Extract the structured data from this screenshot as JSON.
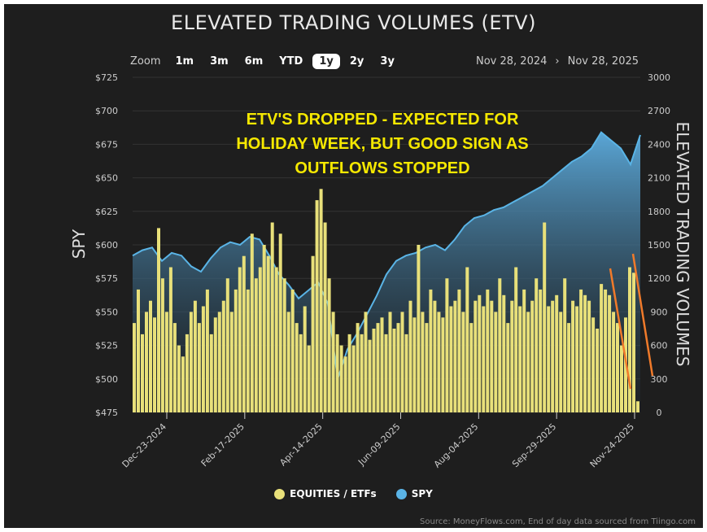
{
  "chart_data": {
    "type": "bar+area",
    "title": "ELEVATED TRADING VOLUMES (ETV)",
    "annotation": [
      "ETV'S DROPPED - EXPECTED FOR",
      "HOLIDAY WEEK, BUT GOOD SIGN AS",
      "OUTFLOWS STOPPED"
    ],
    "y_left": {
      "label": "SPY",
      "ylim": [
        475,
        725
      ],
      "ticks": [
        "$475",
        "$500",
        "$525",
        "$550",
        "$575",
        "$600",
        "$625",
        "$650",
        "$675",
        "$700",
        "$725"
      ]
    },
    "y_right": {
      "label": "ELEVATED TRADING VOLUMES",
      "ylim": [
        0,
        3000
      ],
      "ticks": [
        "0",
        "300",
        "600",
        "900",
        "1200",
        "1500",
        "1800",
        "2100",
        "2400",
        "2700",
        "3000"
      ]
    },
    "x": {
      "range": [
        "Nov 28, 2024",
        "Nov 28, 2025"
      ],
      "tick_labels": [
        "Dec-23-2024",
        "Feb-17-2025",
        "Apr-14-2025",
        "Jun-09-2025",
        "Aug-04-2025",
        "Sep-29-2025",
        "Nov-24-2025"
      ]
    },
    "grid": true,
    "legend_placement": "bottom",
    "series": [
      {
        "name": "EQUITIES / ETFs",
        "type": "bar",
        "axis": "right",
        "color": "#e8e07a",
        "values": [
          800,
          1100,
          700,
          900,
          1000,
          850,
          1650,
          1200,
          900,
          1300,
          800,
          600,
          500,
          700,
          900,
          1000,
          800,
          950,
          1100,
          700,
          850,
          900,
          1000,
          1200,
          900,
          1100,
          1300,
          1400,
          1100,
          1600,
          1200,
          1300,
          1500,
          1400,
          1700,
          1300,
          1600,
          1200,
          900,
          1100,
          800,
          700,
          950,
          600,
          1400,
          1900,
          2000,
          1700,
          1200,
          900,
          700,
          600,
          500,
          700,
          600,
          800,
          700,
          900,
          650,
          750,
          800,
          850,
          700,
          900,
          750,
          800,
          900,
          700,
          1000,
          850,
          1500,
          900,
          800,
          1100,
          1000,
          900,
          850,
          1200,
          950,
          1000,
          1100,
          900,
          1300,
          800,
          1000,
          1050,
          950,
          1100,
          1000,
          900,
          1200,
          1050,
          800,
          1000,
          1300,
          950,
          1100,
          900,
          1000,
          1200,
          1100,
          1700,
          950,
          1000,
          1050,
          900,
          1200,
          800,
          1000,
          950,
          1100,
          1050,
          1000,
          850,
          750,
          1150,
          1100,
          1050,
          900,
          800,
          600,
          850,
          1300,
          1250,
          100
        ]
      },
      {
        "name": "SPY",
        "type": "area",
        "axis": "left",
        "color": "#5ab4e6",
        "values": [
          592,
          596,
          598,
          588,
          594,
          592,
          584,
          580,
          590,
          598,
          602,
          600,
          606,
          604,
          592,
          578,
          570,
          560,
          566,
          572,
          556,
          500,
          522,
          534,
          548,
          562,
          578,
          588,
          592,
          594,
          598,
          600,
          596,
          604,
          614,
          620,
          622,
          626,
          628,
          632,
          636,
          640,
          644,
          650,
          656,
          662,
          666,
          672,
          684,
          678,
          672,
          660,
          682
        ]
      }
    ],
    "source": "Source: MoneyFlows.com, End of day data sourced from Tiingo.com"
  },
  "toolbar": {
    "zoom_label": "Zoom",
    "buttons": [
      "1m",
      "3m",
      "6m",
      "YTD",
      "1y",
      "2y",
      "3y"
    ],
    "active": "1y",
    "range_start": "Nov 28, 2024",
    "range_sep": "›",
    "range_end": "Nov 28, 2025"
  },
  "annotation_line_color": "#f07a2a"
}
